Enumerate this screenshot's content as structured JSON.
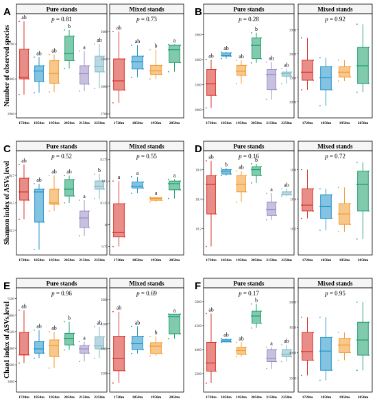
{
  "colors": [
    "#d73027",
    "#1f92c9",
    "#f39a2c",
    "#1a9e6b",
    "#9b8cc4",
    "#7fb8c8"
  ],
  "figure": {
    "panel_letters": [
      "A",
      "B",
      "C",
      "D",
      "E",
      "F"
    ],
    "row_ylabels": [
      "Number of observed species",
      "Shannon index of ASVs level",
      "Chao1 index of ASVs level"
    ],
    "pure_title": "Pure stands",
    "mixed_title": "Mixed stands"
  },
  "chart_data": [
    {
      "type": "box",
      "panel": "A",
      "pure": {
        "p": "p = 0.81",
        "ylim": [
          2900,
          4000
        ],
        "yticks": [
          2900,
          3300,
          3700
        ],
        "categories": [
          "1720m",
          "1850m",
          "1950m",
          "2050m",
          "2150m",
          "2250m"
        ],
        "boxes": [
          {
            "min": 3120,
            "q1": 3300,
            "median": 3320,
            "q3": 3640,
            "max": 3960,
            "letters": "ab"
          },
          {
            "min": 3140,
            "q1": 3270,
            "median": 3390,
            "q3": 3450,
            "max": 3550,
            "letters": "ab"
          },
          {
            "min": 3150,
            "q1": 3250,
            "median": 3360,
            "q3": 3510,
            "max": 3580,
            "letters": "ab"
          },
          {
            "min": 3420,
            "q1": 3510,
            "median": 3590,
            "q3": 3790,
            "max": 3860,
            "letters": "b"
          },
          {
            "min": 3160,
            "q1": 3240,
            "median": 3360,
            "q3": 3450,
            "max": 3620,
            "letters": "a"
          },
          {
            "min": 3190,
            "q1": 3380,
            "median": 3440,
            "q3": 3560,
            "max": 3700,
            "letters": "ab"
          }
        ]
      },
      "mixed": {
        "p": "p = 0.73",
        "ylim": [
          2700,
          3750
        ],
        "yticks": [
          2700,
          3000,
          3300,
          3600
        ],
        "categories": [
          "1720m",
          "1850m",
          "1950m",
          "2050m"
        ],
        "boxes": [
          {
            "min": 2820,
            "q1": 2960,
            "median": 3060,
            "q3": 3300,
            "max": 3600,
            "letters": "ab"
          },
          {
            "min": 3100,
            "q1": 3190,
            "median": 3270,
            "q3": 3330,
            "max": 3450,
            "letters": "ab"
          },
          {
            "min": 3080,
            "q1": 3130,
            "median": 3170,
            "q3": 3230,
            "max": 3400,
            "letters": "b"
          },
          {
            "min": 3160,
            "q1": 3260,
            "median": 3400,
            "q3": 3450,
            "max": 3460,
            "letters": "a"
          }
        ]
      }
    },
    {
      "type": "box",
      "panel": "B",
      "pure": {
        "p": "p = 0.28",
        "ylim": [
          2950,
          4100
        ],
        "yticks": [
          3000,
          3300,
          3600,
          3900
        ],
        "categories": [
          "1720m",
          "1850m",
          "1950m",
          "2050m",
          "2150m",
          "2250m"
        ],
        "boxes": [
          {
            "min": 3020,
            "q1": 3170,
            "median": 3310,
            "q3": 3480,
            "max": 3600,
            "letters": "ab"
          },
          {
            "min": 3610,
            "q1": 3640,
            "median": 3650,
            "q3": 3680,
            "max": 3690,
            "letters": "ab"
          },
          {
            "min": 3310,
            "q1": 3410,
            "median": 3460,
            "q3": 3530,
            "max": 3590,
            "letters": "ab"
          },
          {
            "min": 3560,
            "q1": 3610,
            "median": 3770,
            "q3": 3860,
            "max": 3920,
            "letters": "b"
          },
          {
            "min": 3120,
            "q1": 3240,
            "median": 3420,
            "q3": 3480,
            "max": 3570,
            "letters": "ab"
          },
          {
            "min": 3310,
            "q1": 3400,
            "median": 3430,
            "q3": 3450,
            "max": 3490,
            "letters": "ab"
          }
        ]
      },
      "mixed": {
        "p": "p = 0.92",
        "ylim": [
          2850,
          4050
        ],
        "yticks": [
          3000,
          3300,
          3600,
          3900
        ],
        "categories": [
          "1720m",
          "1850m",
          "1950m",
          "2050m"
        ],
        "boxes": [
          {
            "min": 3150,
            "q1": 3270,
            "median": 3370,
            "q3": 3520,
            "max": 3800,
            "letters": ""
          },
          {
            "min": 2950,
            "q1": 3150,
            "median": 3300,
            "q3": 3440,
            "max": 3550,
            "letters": ""
          },
          {
            "min": 3260,
            "q1": 3310,
            "median": 3370,
            "q3": 3440,
            "max": 3520,
            "letters": ""
          },
          {
            "min": 3120,
            "q1": 3230,
            "median": 3450,
            "q3": 3680,
            "max": 3970,
            "letters": ""
          }
        ]
      }
    },
    {
      "type": "box",
      "panel": "C",
      "pure": {
        "p": "p = 0.52",
        "ylim": [
          10.15,
          10.85
        ],
        "yticks": [
          10.3,
          10.5,
          10.7
        ],
        "categories": [
          "1720m",
          "1850m",
          "1950m",
          "2050m",
          "2150m",
          "2250m"
        ],
        "boxes": [
          {
            "min": 10.38,
            "q1": 10.52,
            "median": 10.58,
            "q3": 10.68,
            "max": 10.78,
            "letters": "ab"
          },
          {
            "min": 10.16,
            "q1": 10.36,
            "median": 10.58,
            "q3": 10.6,
            "max": 10.64,
            "letters": "ab"
          },
          {
            "min": 10.44,
            "q1": 10.49,
            "median": 10.5,
            "q3": 10.6,
            "max": 10.7,
            "letters": "ab"
          },
          {
            "min": 10.5,
            "q1": 10.55,
            "median": 10.6,
            "q3": 10.67,
            "max": 10.7,
            "letters": "ab"
          },
          {
            "min": 10.26,
            "q1": 10.32,
            "median": 10.39,
            "q3": 10.44,
            "max": 10.52,
            "letters": "a"
          },
          {
            "min": 10.53,
            "q1": 10.6,
            "median": 10.62,
            "q3": 10.66,
            "max": 10.71,
            "letters": "b"
          }
        ]
      },
      "mixed": {
        "p": "p = 0.55",
        "ylim": [
          9.7,
          10.8
        ],
        "yticks": [
          9.75,
          10.0,
          10.25,
          10.5,
          10.75
        ],
        "categories": [
          "1720m",
          "1850m",
          "1950m",
          "2050m"
        ],
        "boxes": [
          {
            "min": 9.75,
            "q1": 9.86,
            "median": 9.91,
            "q3": 10.24,
            "max": 10.5,
            "letters": "a"
          },
          {
            "min": 10.36,
            "q1": 10.42,
            "median": 10.44,
            "q3": 10.49,
            "max": 10.55,
            "letters": "a"
          },
          {
            "min": 10.26,
            "q1": 10.28,
            "median": 10.3,
            "q3": 10.31,
            "max": 10.32,
            "letters": "a"
          },
          {
            "min": 10.3,
            "q1": 10.4,
            "median": 10.47,
            "q3": 10.5,
            "max": 10.52,
            "letters": "a"
          }
        ]
      }
    },
    {
      "type": "box",
      "panel": "D",
      "pure": {
        "p": "p = 0.16",
        "ylim": [
          10.05,
          10.7
        ],
        "yticks": [
          10.2,
          10.4,
          10.6
        ],
        "categories": [
          "1720m",
          "1850m",
          "1950m",
          "2050m",
          "2150m",
          "2250m"
        ],
        "boxes": [
          {
            "min": 10.08,
            "q1": 10.3,
            "median": 10.5,
            "q3": 10.56,
            "max": 10.66,
            "letters": "ab"
          },
          {
            "min": 10.56,
            "q1": 10.57,
            "median": 10.59,
            "q3": 10.6,
            "max": 10.61,
            "letters": "b"
          },
          {
            "min": 10.38,
            "q1": 10.45,
            "median": 10.5,
            "q3": 10.56,
            "max": 10.59,
            "letters": "ab"
          },
          {
            "min": 10.51,
            "q1": 10.56,
            "median": 10.6,
            "q3": 10.62,
            "max": 10.64,
            "letters": "b"
          },
          {
            "min": 10.26,
            "q1": 10.29,
            "median": 10.33,
            "q3": 10.38,
            "max": 10.44,
            "letters": "a"
          },
          {
            "min": 10.42,
            "q1": 10.43,
            "median": 10.43,
            "q3": 10.45,
            "max": 10.47,
            "letters": "ab"
          }
        ]
      },
      "mixed": {
        "p": "p = 0.72",
        "ylim": [
          10.05,
          10.7
        ],
        "yticks": [
          10.2,
          10.4,
          10.6
        ],
        "categories": [
          "1720m",
          "1850m",
          "1950m",
          "2050m"
        ],
        "boxes": [
          {
            "min": 10.27,
            "q1": 10.32,
            "median": 10.36,
            "q3": 10.47,
            "max": 10.6,
            "letters": ""
          },
          {
            "min": 10.19,
            "q1": 10.27,
            "median": 10.35,
            "q3": 10.43,
            "max": 10.47,
            "letters": ""
          },
          {
            "min": 10.18,
            "q1": 10.23,
            "median": 10.3,
            "q3": 10.37,
            "max": 10.48,
            "letters": ""
          },
          {
            "min": 10.13,
            "q1": 10.32,
            "median": 10.5,
            "q3": 10.59,
            "max": 10.65,
            "letters": ""
          }
        ]
      }
    },
    {
      "type": "box",
      "panel": "E",
      "pure": {
        "p": "p = 0.96",
        "ylim": [
          2800,
          5700
        ],
        "yticks": [
          3000,
          3500,
          4000,
          4500,
          5000,
          5500
        ],
        "categories": [
          "1720m",
          "1850m",
          "1950m",
          "2050m",
          "2150m",
          "2250m"
        ],
        "boxes": [
          {
            "min": 3550,
            "q1": 3800,
            "median": 3800,
            "q3": 4480,
            "max": 5150,
            "letters": "ab"
          },
          {
            "min": 3700,
            "q1": 3850,
            "median": 3980,
            "q3": 4200,
            "max": 4550,
            "letters": "ab"
          },
          {
            "min": 3400,
            "q1": 3750,
            "median": 4080,
            "q3": 4250,
            "max": 4500,
            "letters": "ab"
          },
          {
            "min": 3950,
            "q1": 4100,
            "median": 4300,
            "q3": 4450,
            "max": 4800,
            "letters": "b"
          },
          {
            "min": 3600,
            "q1": 3850,
            "median": 3980,
            "q3": 4080,
            "max": 4200,
            "letters": "a"
          },
          {
            "min": 3700,
            "q1": 3980,
            "median": 4070,
            "q3": 4350,
            "max": 4650,
            "letters": "ab"
          }
        ]
      },
      "mixed": {
        "p": "p = 0.69",
        "ylim": [
          3200,
          5150
        ],
        "yticks": [
          3500,
          4000,
          4500,
          5000
        ],
        "categories": [
          "1720m",
          "1850m",
          "1950m",
          "2050m"
        ],
        "boxes": [
          {
            "min": 3300,
            "q1": 3550,
            "median": 3800,
            "q3": 4250,
            "max": 4750,
            "letters": "ab"
          },
          {
            "min": 3900,
            "q1": 3980,
            "median": 4100,
            "q3": 4250,
            "max": 4450,
            "letters": "ab"
          },
          {
            "min": 3850,
            "q1": 3900,
            "median": 4050,
            "q3": 4120,
            "max": 4250,
            "letters": "b"
          },
          {
            "min": 4200,
            "q1": 4300,
            "median": 4650,
            "q3": 4700,
            "max": 4700,
            "letters": "a"
          }
        ]
      }
    },
    {
      "type": "box",
      "panel": "F",
      "pure": {
        "p": "p = 0.17",
        "ylim": [
          3200,
          5200
        ],
        "yticks": [
          3500,
          4000,
          4500,
          5000
        ],
        "categories": [
          "1720m",
          "1850m",
          "1950m",
          "2050m",
          "2150m",
          "2250m"
        ],
        "boxes": [
          {
            "min": 3300,
            "q1": 3550,
            "median": 3720,
            "q3": 4150,
            "max": 4750,
            "letters": "ab"
          },
          {
            "min": 4150,
            "q1": 4160,
            "median": 4180,
            "q3": 4210,
            "max": 4230,
            "letters": "ab"
          },
          {
            "min": 3850,
            "q1": 3900,
            "median": 3980,
            "q3": 4050,
            "max": 4150,
            "letters": "ab"
          },
          {
            "min": 4450,
            "q1": 4550,
            "median": 4700,
            "q3": 4800,
            "max": 4950,
            "letters": "b"
          },
          {
            "min": 3600,
            "q1": 3750,
            "median": 3820,
            "q3": 4000,
            "max": 4050,
            "letters": "a"
          },
          {
            "min": 3750,
            "q1": 3850,
            "median": 3900,
            "q3": 4000,
            "max": 4100,
            "letters": "ab"
          }
        ]
      },
      "mixed": {
        "p": "p = 0.95",
        "ylim": [
          3300,
          5200
        ],
        "yticks": [
          3500,
          4000,
          4500,
          5000
        ],
        "categories": [
          "1720m",
          "1850m",
          "1950m",
          "2050m"
        ],
        "boxes": [
          {
            "min": 3550,
            "q1": 3850,
            "median": 4020,
            "q3": 4400,
            "max": 4700,
            "letters": ""
          },
          {
            "min": 3450,
            "q1": 3650,
            "median": 4030,
            "q3": 4300,
            "max": 4700,
            "letters": ""
          },
          {
            "min": 3850,
            "q1": 4000,
            "median": 4150,
            "q3": 4280,
            "max": 4400,
            "letters": ""
          },
          {
            "min": 3650,
            "q1": 3950,
            "median": 4250,
            "q3": 4600,
            "max": 5000,
            "letters": ""
          }
        ]
      }
    }
  ]
}
